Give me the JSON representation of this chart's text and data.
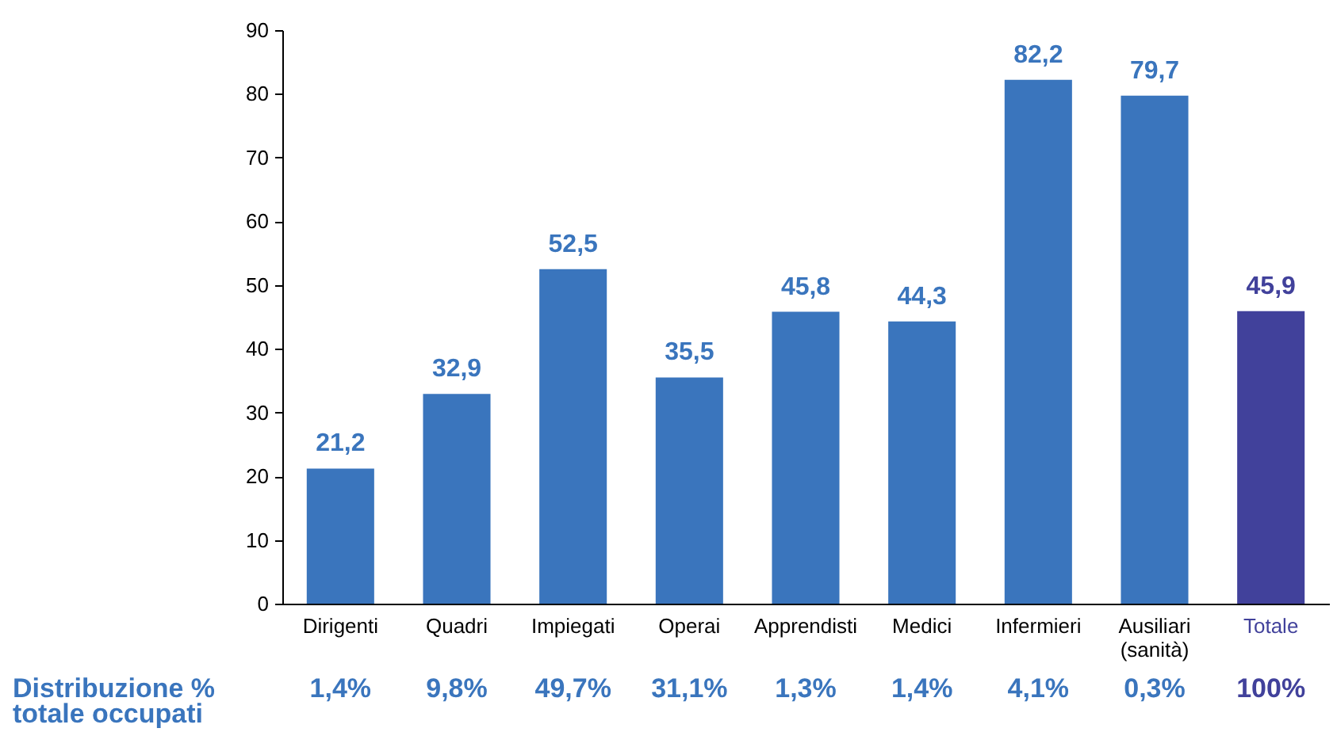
{
  "chart_data": {
    "type": "bar",
    "categories": [
      "Dirigenti",
      "Quadri",
      "Impiegati",
      "Operai",
      "Apprendisti",
      "Medici",
      "Infermieri",
      "Ausiliari (sanità)",
      "Totale"
    ],
    "values": [
      21.2,
      32.9,
      52.5,
      35.5,
      45.8,
      44.3,
      82.2,
      79.7,
      45.9
    ],
    "colors": [
      "#3a75bd",
      "#3a75bd",
      "#3a75bd",
      "#3a75bd",
      "#3a75bd",
      "#3a75bd",
      "#3a75bd",
      "#3a75bd",
      "#41419b"
    ],
    "ylim": [
      0,
      90
    ],
    "yticks": [
      0,
      10,
      20,
      30,
      40,
      50,
      60,
      70,
      80,
      90
    ],
    "grid": false,
    "legend": false,
    "value_labels": [
      "21,2",
      "32,9",
      "52,5",
      "35,5",
      "45,8",
      "44,3",
      "82,2",
      "79,7",
      "45,9"
    ],
    "annotations": [
      "Distribuzione %\ntotale occupati",
      "1,4%",
      "9,8%",
      "49,7%",
      "31,1%",
      "1,3%",
      "1,4%",
      "4,1%",
      "0,3%",
      "100%"
    ]
  }
}
